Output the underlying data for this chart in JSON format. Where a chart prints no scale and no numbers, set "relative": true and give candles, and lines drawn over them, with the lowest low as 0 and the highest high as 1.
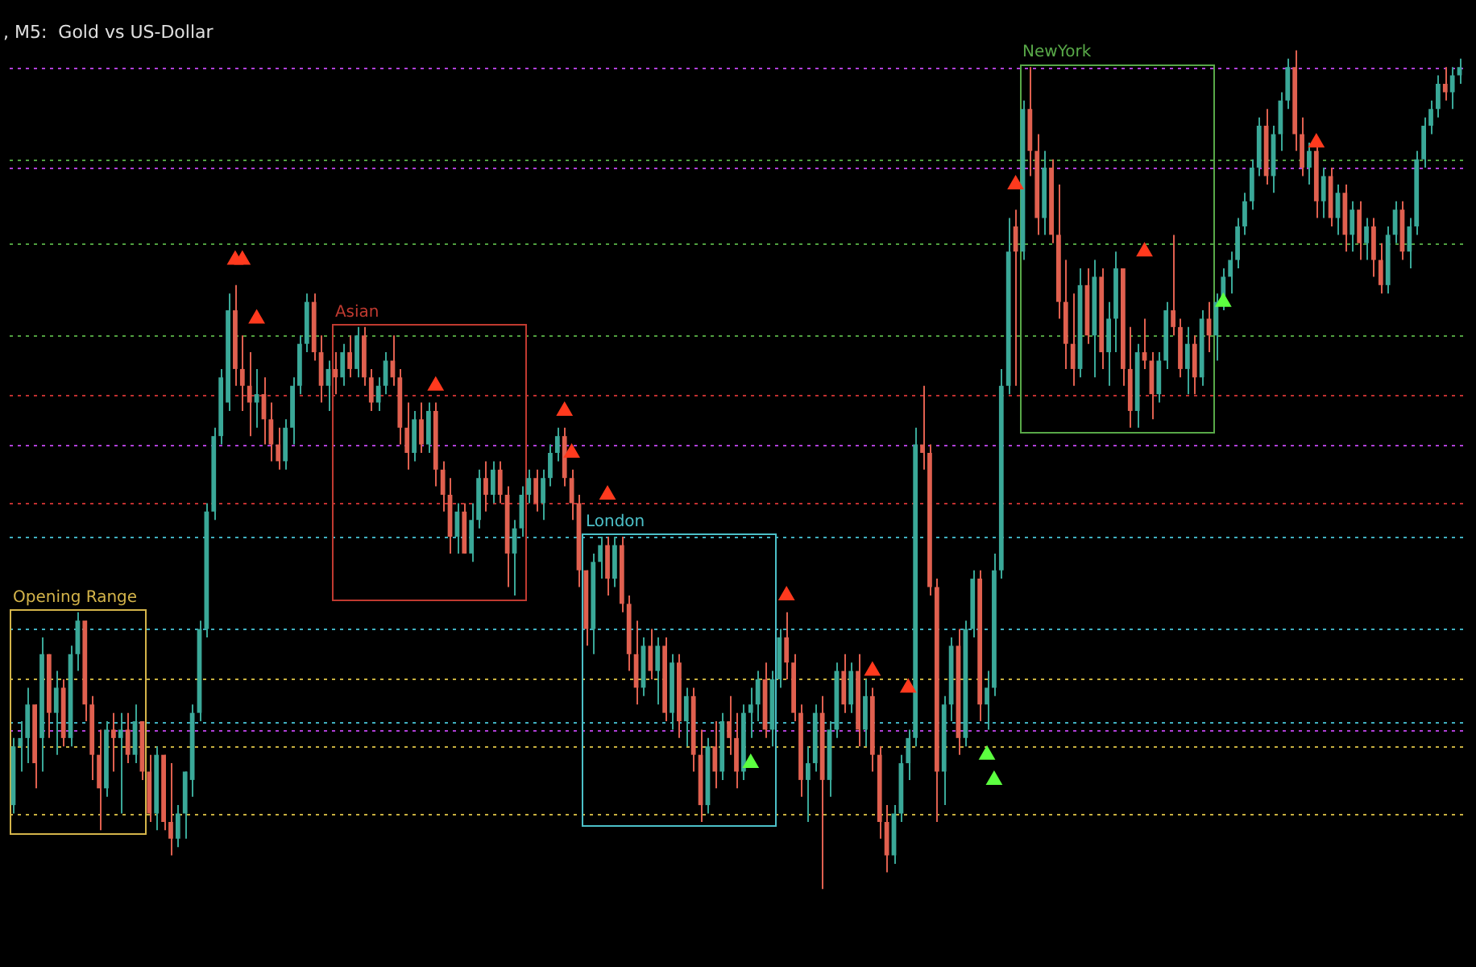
{
  "chart_data": {
    "type": "candlestick",
    "title": ", M5:  Gold vs US-Dollar",
    "relative": true,
    "legend": false,
    "annotations": [
      "Opening Range",
      "Asian",
      "London",
      "NewYork"
    ],
    "categories": [
      null,
      null,
      null,
      null,
      null,
      null,
      null,
      null,
      null,
      null,
      null,
      null,
      null,
      null,
      null,
      null,
      null,
      null,
      null,
      null,
      null,
      null,
      null,
      null,
      null,
      null,
      null,
      null,
      null,
      null,
      null,
      null,
      null,
      null,
      null,
      null,
      null,
      null,
      null,
      null,
      null,
      null,
      null,
      null,
      null,
      null,
      null,
      null,
      null,
      null,
      null,
      null,
      null,
      null,
      null,
      null,
      null,
      null,
      null,
      null,
      null,
      null,
      null,
      null,
      null,
      null,
      null,
      null,
      null,
      null,
      null,
      null,
      null,
      null,
      null,
      null,
      null,
      null,
      null,
      null,
      null,
      null,
      null,
      null,
      null,
      null,
      null,
      null,
      null,
      null,
      null,
      null,
      null,
      null,
      null,
      null,
      null,
      null,
      null,
      null,
      null,
      null,
      null,
      null,
      null,
      null,
      null,
      null,
      null,
      null,
      null,
      null,
      null,
      null,
      null,
      null,
      null,
      null,
      null,
      null,
      null,
      null,
      null,
      null,
      null,
      null,
      null,
      null,
      null,
      null,
      null,
      null,
      null,
      null,
      null,
      null,
      null,
      null,
      null,
      null,
      null,
      null,
      null,
      null,
      null,
      null,
      null,
      null,
      null,
      null,
      null,
      null,
      null,
      null,
      null,
      null,
      null,
      null,
      null,
      null,
      null,
      null,
      null,
      null,
      null,
      null,
      null,
      null,
      null,
      null,
      null,
      null,
      null,
      null,
      null,
      null,
      null,
      null,
      null,
      null,
      null,
      null,
      null,
      null,
      null,
      null,
      null,
      null,
      null,
      null,
      null,
      null,
      null,
      null,
      null,
      null,
      null,
      null,
      null,
      null,
      null,
      null,
      null
    ],
    "ohlc": [
      [
        0.1,
        0.18,
        0.09,
        0.17
      ],
      [
        0.17,
        0.2,
        0.14,
        0.18
      ],
      [
        0.18,
        0.24,
        0.15,
        0.22
      ],
      [
        0.22,
        0.22,
        0.12,
        0.15
      ],
      [
        0.18,
        0.3,
        0.14,
        0.28
      ],
      [
        0.28,
        0.28,
        0.18,
        0.21
      ],
      [
        0.21,
        0.26,
        0.16,
        0.24
      ],
      [
        0.24,
        0.25,
        0.17,
        0.18
      ],
      [
        0.18,
        0.29,
        0.17,
        0.28
      ],
      [
        0.28,
        0.33,
        0.26,
        0.32
      ],
      [
        0.32,
        0.32,
        0.2,
        0.22
      ],
      [
        0.22,
        0.23,
        0.13,
        0.16
      ],
      [
        0.16,
        0.19,
        0.07,
        0.12
      ],
      [
        0.12,
        0.2,
        0.11,
        0.19
      ],
      [
        0.19,
        0.21,
        0.14,
        0.18
      ],
      [
        0.18,
        0.21,
        0.09,
        0.19
      ],
      [
        0.19,
        0.21,
        0.15,
        0.16
      ],
      [
        0.16,
        0.22,
        0.15,
        0.2
      ],
      [
        0.2,
        0.2,
        0.13,
        0.14
      ],
      [
        0.14,
        0.16,
        0.08,
        0.09
      ],
      [
        0.09,
        0.17,
        0.07,
        0.16
      ],
      [
        0.16,
        0.16,
        0.07,
        0.08
      ],
      [
        0.08,
        0.15,
        0.04,
        0.06
      ],
      [
        0.06,
        0.1,
        0.05,
        0.09
      ],
      [
        0.09,
        0.14,
        0.06,
        0.14
      ],
      [
        0.13,
        0.22,
        0.11,
        0.21
      ],
      [
        0.21,
        0.32,
        0.2,
        0.31
      ],
      [
        0.31,
        0.46,
        0.3,
        0.45
      ],
      [
        0.45,
        0.55,
        0.44,
        0.54
      ],
      [
        0.54,
        0.62,
        0.53,
        0.61
      ],
      [
        0.58,
        0.71,
        0.57,
        0.69
      ],
      [
        0.69,
        0.72,
        0.6,
        0.62
      ],
      [
        0.62,
        0.66,
        0.57,
        0.6
      ],
      [
        0.6,
        0.64,
        0.54,
        0.58
      ],
      [
        0.58,
        0.62,
        0.55,
        0.59
      ],
      [
        0.59,
        0.61,
        0.53,
        0.56
      ],
      [
        0.56,
        0.58,
        0.51,
        0.53
      ],
      [
        0.53,
        0.55,
        0.5,
        0.51
      ],
      [
        0.51,
        0.56,
        0.5,
        0.55
      ],
      [
        0.55,
        0.61,
        0.53,
        0.6
      ],
      [
        0.6,
        0.66,
        0.59,
        0.65
      ],
      [
        0.65,
        0.71,
        0.64,
        0.7
      ],
      [
        0.7,
        0.71,
        0.63,
        0.64
      ],
      [
        0.64,
        0.66,
        0.58,
        0.6
      ],
      [
        0.6,
        0.63,
        0.57,
        0.62
      ],
      [
        0.62,
        0.64,
        0.59,
        0.61
      ],
      [
        0.61,
        0.65,
        0.6,
        0.64
      ],
      [
        0.64,
        0.66,
        0.61,
        0.62
      ],
      [
        0.62,
        0.67,
        0.61,
        0.66
      ],
      [
        0.66,
        0.67,
        0.6,
        0.61
      ],
      [
        0.61,
        0.62,
        0.57,
        0.58
      ],
      [
        0.58,
        0.61,
        0.57,
        0.6
      ],
      [
        0.6,
        0.64,
        0.59,
        0.63
      ],
      [
        0.63,
        0.66,
        0.6,
        0.61
      ],
      [
        0.61,
        0.62,
        0.53,
        0.55
      ],
      [
        0.55,
        0.58,
        0.5,
        0.52
      ],
      [
        0.52,
        0.57,
        0.51,
        0.56
      ],
      [
        0.56,
        0.58,
        0.52,
        0.53
      ],
      [
        0.53,
        0.58,
        0.52,
        0.57
      ],
      [
        0.57,
        0.58,
        0.48,
        0.5
      ],
      [
        0.5,
        0.51,
        0.45,
        0.47
      ],
      [
        0.47,
        0.49,
        0.4,
        0.42
      ],
      [
        0.42,
        0.46,
        0.4,
        0.45
      ],
      [
        0.45,
        0.46,
        0.4,
        0.4
      ],
      [
        0.4,
        0.46,
        0.39,
        0.44
      ],
      [
        0.44,
        0.5,
        0.43,
        0.49
      ],
      [
        0.49,
        0.51,
        0.45,
        0.47
      ],
      [
        0.47,
        0.51,
        0.46,
        0.5
      ],
      [
        0.5,
        0.51,
        0.46,
        0.47
      ],
      [
        0.47,
        0.48,
        0.36,
        0.4
      ],
      [
        0.4,
        0.44,
        0.35,
        0.43
      ],
      [
        0.43,
        0.48,
        0.42,
        0.47
      ],
      [
        0.47,
        0.5,
        0.46,
        0.49
      ],
      [
        0.49,
        0.5,
        0.45,
        0.46
      ],
      [
        0.46,
        0.5,
        0.44,
        0.49
      ],
      [
        0.49,
        0.53,
        0.48,
        0.52
      ],
      [
        0.52,
        0.55,
        0.51,
        0.54
      ],
      [
        0.54,
        0.55,
        0.48,
        0.49
      ],
      [
        0.49,
        0.5,
        0.44,
        0.46
      ],
      [
        0.46,
        0.47,
        0.36,
        0.38
      ],
      [
        0.38,
        0.38,
        0.29,
        0.31
      ],
      [
        0.31,
        0.4,
        0.28,
        0.39
      ],
      [
        0.39,
        0.42,
        0.37,
        0.41
      ],
      [
        0.41,
        0.42,
        0.35,
        0.37
      ],
      [
        0.37,
        0.42,
        0.36,
        0.41
      ],
      [
        0.41,
        0.42,
        0.33,
        0.34
      ],
      [
        0.34,
        0.35,
        0.26,
        0.28
      ],
      [
        0.28,
        0.32,
        0.22,
        0.24
      ],
      [
        0.24,
        0.3,
        0.23,
        0.29
      ],
      [
        0.29,
        0.31,
        0.25,
        0.26
      ],
      [
        0.26,
        0.3,
        0.22,
        0.29
      ],
      [
        0.29,
        0.3,
        0.2,
        0.21
      ],
      [
        0.21,
        0.28,
        0.19,
        0.27
      ],
      [
        0.27,
        0.28,
        0.18,
        0.2
      ],
      [
        0.2,
        0.24,
        0.17,
        0.23
      ],
      [
        0.23,
        0.24,
        0.14,
        0.16
      ],
      [
        0.16,
        0.19,
        0.08,
        0.1
      ],
      [
        0.1,
        0.18,
        0.09,
        0.17
      ],
      [
        0.17,
        0.2,
        0.12,
        0.14
      ],
      [
        0.14,
        0.21,
        0.13,
        0.2
      ],
      [
        0.2,
        0.23,
        0.16,
        0.18
      ],
      [
        0.18,
        0.21,
        0.12,
        0.14
      ],
      [
        0.14,
        0.22,
        0.13,
        0.21
      ],
      [
        0.21,
        0.24,
        0.18,
        0.22
      ],
      [
        0.22,
        0.26,
        0.2,
        0.25
      ],
      [
        0.25,
        0.27,
        0.18,
        0.19
      ],
      [
        0.19,
        0.26,
        0.17,
        0.25
      ],
      [
        0.25,
        0.31,
        0.24,
        0.3
      ],
      [
        0.3,
        0.33,
        0.25,
        0.27
      ],
      [
        0.27,
        0.28,
        0.2,
        0.21
      ],
      [
        0.21,
        0.22,
        0.11,
        0.13
      ],
      [
        0.13,
        0.17,
        0.08,
        0.15
      ],
      [
        0.15,
        0.22,
        0.14,
        0.21
      ],
      [
        0.21,
        0.23,
        0.0,
        0.13
      ],
      [
        0.13,
        0.2,
        0.11,
        0.19
      ],
      [
        0.19,
        0.27,
        0.18,
        0.26
      ],
      [
        0.26,
        0.28,
        0.21,
        0.22
      ],
      [
        0.22,
        0.27,
        0.21,
        0.26
      ],
      [
        0.26,
        0.28,
        0.17,
        0.19
      ],
      [
        0.19,
        0.25,
        0.17,
        0.23
      ],
      [
        0.23,
        0.24,
        0.14,
        0.16
      ],
      [
        0.16,
        0.17,
        0.06,
        0.08
      ],
      [
        0.08,
        0.1,
        0.02,
        0.04
      ],
      [
        0.04,
        0.1,
        0.03,
        0.09
      ],
      [
        0.09,
        0.16,
        0.08,
        0.15
      ],
      [
        0.15,
        0.19,
        0.13,
        0.18
      ],
      [
        0.18,
        0.55,
        0.17,
        0.53
      ],
      [
        0.53,
        0.6,
        0.5,
        0.52
      ],
      [
        0.52,
        0.53,
        0.35,
        0.36
      ],
      [
        0.36,
        0.37,
        0.08,
        0.14
      ],
      [
        0.14,
        0.23,
        0.1,
        0.22
      ],
      [
        0.22,
        0.3,
        0.2,
        0.29
      ],
      [
        0.29,
        0.31,
        0.16,
        0.18
      ],
      [
        0.18,
        0.32,
        0.17,
        0.31
      ],
      [
        0.31,
        0.38,
        0.3,
        0.37
      ],
      [
        0.37,
        0.38,
        0.2,
        0.22
      ],
      [
        0.22,
        0.26,
        0.19,
        0.24
      ],
      [
        0.24,
        0.4,
        0.23,
        0.38
      ],
      [
        0.38,
        0.62,
        0.37,
        0.6
      ],
      [
        0.6,
        0.8,
        0.59,
        0.76
      ],
      [
        0.79,
        0.81,
        0.6,
        0.76
      ],
      [
        0.76,
        0.94,
        0.75,
        0.93
      ],
      [
        0.93,
        0.98,
        0.85,
        0.88
      ],
      [
        0.88,
        0.9,
        0.78,
        0.8
      ],
      [
        0.8,
        0.88,
        0.78,
        0.86
      ],
      [
        0.86,
        0.87,
        0.77,
        0.78
      ],
      [
        0.78,
        0.84,
        0.68,
        0.7
      ],
      [
        0.7,
        0.75,
        0.62,
        0.65
      ],
      [
        0.65,
        0.71,
        0.6,
        0.62
      ],
      [
        0.62,
        0.74,
        0.61,
        0.72
      ],
      [
        0.72,
        0.74,
        0.65,
        0.66
      ],
      [
        0.66,
        0.75,
        0.61,
        0.73
      ],
      [
        0.73,
        0.74,
        0.62,
        0.64
      ],
      [
        0.64,
        0.7,
        0.6,
        0.68
      ],
      [
        0.68,
        0.76,
        0.64,
        0.74
      ],
      [
        0.74,
        0.74,
        0.6,
        0.62
      ],
      [
        0.62,
        0.67,
        0.55,
        0.57
      ],
      [
        0.57,
        0.65,
        0.55,
        0.64
      ],
      [
        0.64,
        0.68,
        0.62,
        0.63
      ],
      [
        0.63,
        0.64,
        0.56,
        0.59
      ],
      [
        0.59,
        0.64,
        0.58,
        0.63
      ],
      [
        0.63,
        0.7,
        0.62,
        0.69
      ],
      [
        0.69,
        0.78,
        0.66,
        0.67
      ],
      [
        0.67,
        0.68,
        0.61,
        0.62
      ],
      [
        0.62,
        0.67,
        0.59,
        0.65
      ],
      [
        0.65,
        0.66,
        0.59,
        0.61
      ],
      [
        0.61,
        0.69,
        0.6,
        0.68
      ],
      [
        0.68,
        0.7,
        0.64,
        0.66
      ],
      [
        0.66,
        0.71,
        0.63,
        0.7
      ],
      [
        0.7,
        0.74,
        0.69,
        0.73
      ],
      [
        0.73,
        0.76,
        0.71,
        0.75
      ],
      [
        0.75,
        0.8,
        0.74,
        0.79
      ],
      [
        0.79,
        0.83,
        0.78,
        0.82
      ],
      [
        0.82,
        0.87,
        0.81,
        0.86
      ],
      [
        0.86,
        0.92,
        0.85,
        0.91
      ],
      [
        0.91,
        0.93,
        0.84,
        0.85
      ],
      [
        0.85,
        0.91,
        0.83,
        0.9
      ],
      [
        0.9,
        0.95,
        0.88,
        0.94
      ],
      [
        0.94,
        0.99,
        0.93,
        0.98
      ],
      [
        0.98,
        1.0,
        0.88,
        0.9
      ],
      [
        0.9,
        0.92,
        0.85,
        0.86
      ],
      [
        0.86,
        0.89,
        0.84,
        0.88
      ],
      [
        0.88,
        0.89,
        0.8,
        0.82
      ],
      [
        0.82,
        0.86,
        0.8,
        0.85
      ],
      [
        0.85,
        0.86,
        0.79,
        0.8
      ],
      [
        0.8,
        0.84,
        0.78,
        0.83
      ],
      [
        0.83,
        0.84,
        0.76,
        0.78
      ],
      [
        0.78,
        0.82,
        0.76,
        0.81
      ],
      [
        0.81,
        0.82,
        0.75,
        0.77
      ],
      [
        0.77,
        0.8,
        0.75,
        0.79
      ],
      [
        0.79,
        0.8,
        0.73,
        0.75
      ],
      [
        0.75,
        0.77,
        0.71,
        0.72
      ],
      [
        0.72,
        0.79,
        0.71,
        0.78
      ],
      [
        0.78,
        0.82,
        0.77,
        0.81
      ],
      [
        0.81,
        0.82,
        0.75,
        0.76
      ],
      [
        0.76,
        0.8,
        0.74,
        0.79
      ],
      [
        0.79,
        0.88,
        0.78,
        0.87
      ],
      [
        0.87,
        0.92,
        0.86,
        0.91
      ],
      [
        0.91,
        0.94,
        0.9,
        0.93
      ],
      [
        0.93,
        0.97,
        0.92,
        0.96
      ],
      [
        0.96,
        0.98,
        0.94,
        0.95
      ],
      [
        0.95,
        0.98,
        0.93,
        0.97
      ],
      [
        0.97,
        0.99,
        0.96,
        0.98
      ]
    ],
    "series": [
      {
        "type": "scatter",
        "color": "#ff3a1e",
        "marker": "triangle",
        "values": [
          null,
          null,
          null,
          null,
          null,
          null,
          null,
          null,
          null,
          null,
          null,
          null,
          null,
          null,
          null,
          null,
          null,
          null,
          null,
          null,
          null,
          null,
          null,
          null,
          null,
          null,
          null,
          null,
          null,
          null,
          null,
          0.75,
          0.75,
          null,
          0.68,
          null,
          null,
          null,
          null,
          null,
          null,
          null,
          null,
          null,
          null,
          null,
          null,
          null,
          null,
          null,
          null,
          null,
          null,
          null,
          null,
          null,
          null,
          null,
          null,
          0.6,
          null,
          null,
          null,
          null,
          null,
          null,
          null,
          null,
          null,
          null,
          null,
          null,
          null,
          null,
          null,
          null,
          null,
          0.57,
          0.52,
          null,
          null,
          null,
          null,
          0.47,
          null,
          null,
          null,
          null,
          null,
          null,
          null,
          null,
          null,
          null,
          null,
          null,
          null,
          null,
          null,
          null,
          null,
          null,
          null,
          null,
          null,
          null,
          null,
          null,
          0.35,
          null,
          null,
          null,
          null,
          null,
          null,
          null,
          null,
          null,
          null,
          null,
          0.26,
          null,
          null,
          null,
          null,
          0.24,
          null,
          null,
          null,
          null,
          null,
          null,
          null,
          null,
          null,
          null,
          null,
          null,
          null,
          null,
          0.84,
          null,
          null,
          null,
          null,
          null,
          null,
          null,
          null,
          null,
          null,
          null,
          null,
          null,
          null,
          null,
          null,
          null,
          0.76,
          null,
          null,
          null,
          null,
          null,
          null,
          null,
          null,
          null,
          null,
          null,
          null,
          null,
          null,
          null,
          null,
          null,
          null,
          null,
          null,
          null,
          null,
          null,
          0.89,
          null,
          null,
          null,
          null,
          null,
          null,
          null,
          null,
          null,
          null,
          null,
          null,
          null,
          null,
          null,
          null,
          null,
          null,
          null,
          null
        ]
      },
      {
        "type": "scatter",
        "color": "#5cff40",
        "marker": "triangle",
        "values": [
          null,
          null,
          null,
          null,
          null,
          null,
          null,
          null,
          null,
          null,
          null,
          null,
          null,
          null,
          null,
          null,
          null,
          null,
          null,
          null,
          null,
          null,
          null,
          null,
          null,
          null,
          null,
          null,
          null,
          null,
          null,
          null,
          null,
          null,
          null,
          null,
          null,
          null,
          null,
          null,
          null,
          null,
          null,
          null,
          null,
          null,
          null,
          null,
          null,
          null,
          null,
          null,
          null,
          null,
          null,
          null,
          null,
          null,
          null,
          null,
          null,
          null,
          null,
          null,
          null,
          null,
          null,
          null,
          null,
          null,
          null,
          null,
          null,
          null,
          null,
          null,
          null,
          null,
          null,
          null,
          null,
          null,
          null,
          null,
          null,
          null,
          null,
          null,
          null,
          null,
          null,
          null,
          null,
          null,
          null,
          null,
          null,
          null,
          null,
          null,
          null,
          null,
          null,
          0.15,
          null,
          null,
          null,
          null,
          null,
          null,
          null,
          null,
          null,
          null,
          null,
          null,
          null,
          null,
          null,
          null,
          null,
          null,
          null,
          null,
          null,
          null,
          null,
          null,
          null,
          null,
          null,
          null,
          null,
          null,
          null,
          null,
          0.16,
          0.13,
          null,
          null,
          null,
          null,
          null,
          null,
          null,
          null,
          null,
          null,
          null,
          null,
          null,
          null,
          null,
          null,
          null,
          null,
          null,
          null,
          null,
          null,
          null,
          null,
          null,
          null,
          null,
          null,
          null,
          null,
          null,
          0.7,
          null,
          null,
          null,
          null,
          null,
          null,
          null,
          null,
          null,
          null,
          null,
          null,
          null,
          null,
          null,
          null,
          null,
          null,
          null,
          null,
          null,
          null,
          null,
          null,
          null,
          null,
          null,
          null,
          null,
          null,
          null,
          null,
          null
        ]
      }
    ],
    "ref_lines": [
      {
        "axis": "y",
        "value": 0.98,
        "color": "#b040d8",
        "line_style": "dotted"
      },
      {
        "axis": "y",
        "value": 0.86,
        "color": "#b040d8",
        "line_style": "dotted"
      },
      {
        "axis": "y",
        "value": 0.53,
        "color": "#b040d8",
        "line_style": "dotted"
      },
      {
        "axis": "y",
        "value": 0.19,
        "color": "#b040d8",
        "line_style": "dotted"
      },
      {
        "axis": "y",
        "value": 0.25,
        "color": "#c8b040",
        "line_style": "dotted"
      },
      {
        "axis": "y",
        "value": 0.17,
        "color": "#c8b040",
        "line_style": "dotted"
      },
      {
        "axis": "y",
        "value": 0.09,
        "color": "#c8b040",
        "line_style": "dotted"
      },
      {
        "axis": "y",
        "value": 0.59,
        "color": "#c03030",
        "line_style": "dotted"
      },
      {
        "axis": "y",
        "value": 0.46,
        "color": "#c03030",
        "line_style": "dotted"
      },
      {
        "axis": "y",
        "value": 0.42,
        "color": "#40b0c0",
        "line_style": "dotted"
      },
      {
        "axis": "y",
        "value": 0.31,
        "color": "#40b0c0",
        "line_style": "dotted"
      },
      {
        "axis": "y",
        "value": 0.2,
        "color": "#40b0c0",
        "line_style": "dotted"
      },
      {
        "axis": "y",
        "value": 0.87,
        "color": "#50a040",
        "line_style": "dotted"
      },
      {
        "axis": "y",
        "value": 0.77,
        "color": "#50a040",
        "line_style": "dotted"
      },
      {
        "axis": "y",
        "value": 0.66,
        "color": "#50a040",
        "line_style": "dotted"
      }
    ]
  }
}
